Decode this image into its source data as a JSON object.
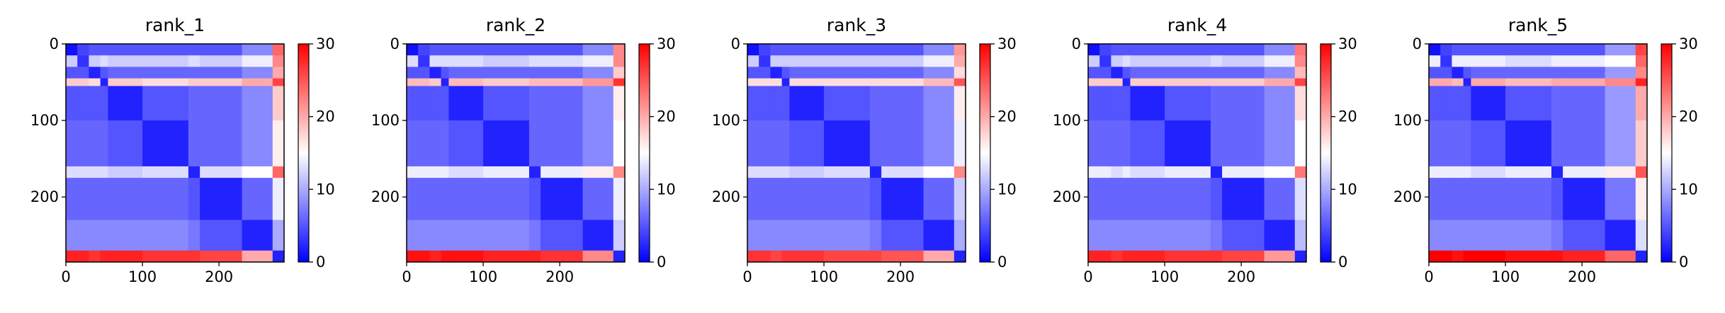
{
  "chart_data": [
    {
      "type": "heatmap",
      "title": "rank_1",
      "colormap": "bwr",
      "vlim": [
        0,
        30
      ],
      "cticks": [
        0,
        10,
        20,
        30
      ],
      "x_edges": [
        0,
        15,
        30,
        45,
        55,
        100,
        160,
        175,
        230,
        270,
        285
      ],
      "y_edges": [
        0,
        15,
        30,
        45,
        55,
        100,
        160,
        175,
        230,
        270,
        285
      ],
      "xlim": [
        0,
        285
      ],
      "ylim": [
        285,
        0
      ],
      "xticks": [
        0,
        100,
        200
      ],
      "yticks": [
        0,
        100,
        200
      ],
      "values": [
        [
          1,
          4,
          5,
          5,
          5,
          5,
          5,
          5,
          8,
          24
        ],
        [
          12,
          3,
          12,
          13,
          12,
          12,
          13,
          12,
          14,
          22
        ],
        [
          5,
          5,
          2,
          5,
          6,
          6,
          6,
          6,
          8,
          20
        ],
        [
          18,
          18,
          17,
          2,
          18,
          17,
          18,
          18,
          20,
          26
        ],
        [
          5,
          5,
          5,
          5,
          2,
          5,
          6,
          6,
          8,
          18
        ],
        [
          6,
          6,
          6,
          6,
          5,
          2,
          6,
          6,
          8,
          16
        ],
        [
          13,
          13,
          13,
          13,
          12,
          13,
          2,
          13,
          15,
          24
        ],
        [
          6,
          6,
          6,
          6,
          6,
          6,
          5,
          2,
          6,
          14
        ],
        [
          8,
          8,
          8,
          8,
          8,
          8,
          7,
          5,
          2,
          10
        ],
        [
          28,
          28,
          27,
          28,
          28,
          27,
          27,
          26,
          20,
          2
        ]
      ]
    },
    {
      "type": "heatmap",
      "title": "rank_2",
      "colormap": "bwr",
      "vlim": [
        0,
        30
      ],
      "cticks": [
        0,
        10,
        20,
        30
      ],
      "x_edges": [
        0,
        15,
        30,
        45,
        55,
        100,
        160,
        175,
        230,
        270,
        285
      ],
      "y_edges": [
        0,
        15,
        30,
        45,
        55,
        100,
        160,
        175,
        230,
        270,
        285
      ],
      "xlim": [
        0,
        285
      ],
      "ylim": [
        285,
        0
      ],
      "xticks": [
        0,
        100,
        200
      ],
      "yticks": [
        0,
        100,
        200
      ],
      "values": [
        [
          1,
          4,
          5,
          5,
          5,
          5,
          5,
          5,
          8,
          22
        ],
        [
          13,
          3,
          13,
          13,
          13,
          12,
          13,
          13,
          14,
          22
        ],
        [
          5,
          5,
          2,
          5,
          6,
          6,
          6,
          6,
          8,
          18
        ],
        [
          19,
          19,
          18,
          2,
          19,
          18,
          19,
          19,
          21,
          27
        ],
        [
          5,
          5,
          5,
          5,
          2,
          5,
          6,
          6,
          8,
          16
        ],
        [
          6,
          6,
          6,
          6,
          5,
          2,
          6,
          6,
          8,
          15
        ],
        [
          14,
          14,
          14,
          14,
          13,
          14,
          2,
          14,
          16,
          22
        ],
        [
          6,
          6,
          6,
          6,
          6,
          6,
          5,
          2,
          6,
          14
        ],
        [
          8,
          8,
          8,
          8,
          8,
          8,
          7,
          5,
          2,
          12
        ],
        [
          29,
          29,
          28,
          29,
          29,
          28,
          28,
          27,
          22,
          2
        ]
      ]
    },
    {
      "type": "heatmap",
      "title": "rank_3",
      "colormap": "bwr",
      "vlim": [
        0,
        30
      ],
      "cticks": [
        0,
        10,
        20,
        30
      ],
      "x_edges": [
        0,
        15,
        30,
        45,
        55,
        100,
        160,
        175,
        230,
        270,
        285
      ],
      "y_edges": [
        0,
        15,
        30,
        45,
        55,
        100,
        160,
        175,
        230,
        270,
        285
      ],
      "xlim": [
        0,
        285
      ],
      "ylim": [
        285,
        0
      ],
      "xticks": [
        0,
        100,
        200
      ],
      "yticks": [
        0,
        100,
        200
      ],
      "values": [
        [
          1,
          4,
          5,
          5,
          5,
          5,
          5,
          5,
          8,
          21
        ],
        [
          12,
          3,
          12,
          12,
          12,
          12,
          12,
          12,
          14,
          20
        ],
        [
          5,
          5,
          2,
          5,
          6,
          6,
          6,
          6,
          8,
          17
        ],
        [
          17,
          17,
          17,
          2,
          17,
          17,
          17,
          17,
          19,
          25
        ],
        [
          5,
          5,
          5,
          5,
          2,
          5,
          6,
          6,
          8,
          16
        ],
        [
          6,
          6,
          6,
          6,
          5,
          2,
          6,
          6,
          8,
          14
        ],
        [
          13,
          13,
          13,
          13,
          12,
          13,
          2,
          13,
          15,
          22
        ],
        [
          6,
          6,
          6,
          6,
          6,
          6,
          5,
          2,
          6,
          12
        ],
        [
          8,
          8,
          8,
          8,
          8,
          8,
          7,
          5,
          2,
          10
        ],
        [
          27,
          27,
          26,
          27,
          27,
          26,
          26,
          25,
          20,
          2
        ]
      ]
    },
    {
      "type": "heatmap",
      "title": "rank_4",
      "colormap": "bwr",
      "vlim": [
        0,
        30
      ],
      "cticks": [
        0,
        10,
        20,
        30
      ],
      "x_edges": [
        0,
        15,
        30,
        45,
        55,
        100,
        160,
        175,
        230,
        270,
        285
      ],
      "y_edges": [
        0,
        15,
        30,
        45,
        55,
        100,
        160,
        175,
        230,
        270,
        285
      ],
      "xlim": [
        0,
        285
      ],
      "ylim": [
        285,
        0
      ],
      "xticks": [
        0,
        100,
        200
      ],
      "yticks": [
        0,
        100,
        200
      ],
      "values": [
        [
          1,
          4,
          5,
          5,
          5,
          5,
          5,
          5,
          8,
          23
        ],
        [
          12,
          3,
          12,
          13,
          12,
          12,
          13,
          12,
          14,
          22
        ],
        [
          5,
          5,
          2,
          5,
          6,
          6,
          6,
          6,
          8,
          19
        ],
        [
          18,
          18,
          18,
          2,
          18,
          18,
          18,
          18,
          20,
          26
        ],
        [
          5,
          5,
          5,
          5,
          2,
          5,
          6,
          6,
          8,
          17
        ],
        [
          6,
          6,
          6,
          6,
          5,
          2,
          6,
          6,
          8,
          15
        ],
        [
          14,
          14,
          13,
          14,
          13,
          14,
          2,
          14,
          15,
          23
        ],
        [
          6,
          6,
          6,
          6,
          6,
          6,
          5,
          2,
          6,
          13
        ],
        [
          8,
          8,
          8,
          8,
          8,
          8,
          7,
          5,
          2,
          11
        ],
        [
          28,
          28,
          27,
          28,
          28,
          27,
          27,
          26,
          21,
          2
        ]
      ]
    },
    {
      "type": "heatmap",
      "title": "rank_5",
      "colormap": "bwr",
      "vlim": [
        0,
        30
      ],
      "cticks": [
        0,
        10,
        20,
        30
      ],
      "x_edges": [
        0,
        15,
        30,
        45,
        55,
        100,
        160,
        175,
        230,
        270,
        285
      ],
      "y_edges": [
        0,
        15,
        30,
        45,
        55,
        100,
        160,
        175,
        230,
        270,
        285
      ],
      "xlim": [
        0,
        285
      ],
      "ylim": [
        285,
        0
      ],
      "xticks": [
        0,
        100,
        200
      ],
      "yticks": [
        0,
        100,
        200
      ],
      "values": [
        [
          1,
          4,
          5,
          5,
          5,
          5,
          5,
          5,
          9,
          26
        ],
        [
          14,
          3,
          14,
          14,
          14,
          13,
          14,
          14,
          15,
          24
        ],
        [
          5,
          5,
          2,
          5,
          6,
          6,
          6,
          6,
          9,
          22
        ],
        [
          20,
          20,
          19,
          2,
          20,
          19,
          20,
          20,
          22,
          28
        ],
        [
          5,
          5,
          5,
          5,
          2,
          5,
          6,
          6,
          9,
          20
        ],
        [
          6,
          6,
          6,
          6,
          5,
          2,
          6,
          6,
          9,
          18
        ],
        [
          14,
          14,
          14,
          14,
          13,
          14,
          2,
          14,
          16,
          25
        ],
        [
          6,
          6,
          6,
          6,
          6,
          6,
          5,
          2,
          7,
          16
        ],
        [
          8,
          8,
          8,
          8,
          8,
          8,
          7,
          5,
          2,
          13
        ],
        [
          30,
          30,
          29,
          30,
          30,
          29,
          29,
          28,
          24,
          2
        ]
      ]
    }
  ]
}
